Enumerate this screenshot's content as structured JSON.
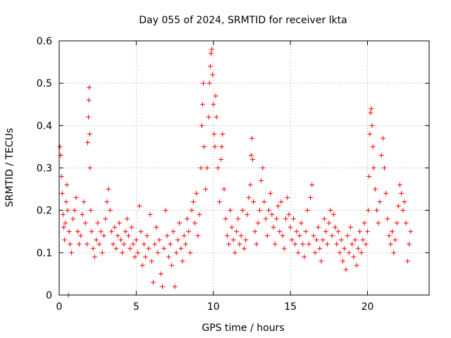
{
  "chart_data": {
    "type": "scatter",
    "title": "Day 055 of 2024, SRMTID for receiver lkta",
    "xlabel": "GPS time / hours",
    "ylabel": "SRMTID / TECUs",
    "xlim": [
      0,
      24
    ],
    "ylim": [
      0,
      0.6
    ],
    "xticks": [
      0,
      5,
      10,
      15,
      20
    ],
    "xtick_labels": [
      "0",
      "5",
      "10",
      "15",
      "20"
    ],
    "yticks": [
      0,
      0.1,
      0.2,
      0.3,
      0.4,
      0.5,
      0.6
    ],
    "ytick_labels": [
      "0",
      "0.1",
      "0.2",
      "0.3",
      "0.4",
      "0.5",
      "0.6"
    ],
    "grid": true,
    "marker": "plus",
    "color": "#ff0000",
    "series": [
      {
        "name": "SRMTID",
        "points": [
          [
            0.05,
            0.35
          ],
          [
            0.1,
            0.33
          ],
          [
            0.15,
            0.28
          ],
          [
            0.2,
            0.24
          ],
          [
            0.25,
            0.19
          ],
          [
            0.3,
            0.16
          ],
          [
            0.35,
            0.13
          ],
          [
            0.4,
            0.17
          ],
          [
            0.45,
            0.22
          ],
          [
            0.5,
            0.26
          ],
          [
            0.55,
            0.2
          ],
          [
            0.6,
            0.0
          ],
          [
            0.65,
            0.15
          ],
          [
            0.7,
            0.12
          ],
          [
            0.8,
            0.1
          ],
          [
            0.9,
            0.18
          ],
          [
            1.0,
            0.2
          ],
          [
            1.1,
            0.23
          ],
          [
            1.2,
            0.15
          ],
          [
            1.3,
            0.12
          ],
          [
            1.4,
            0.14
          ],
          [
            1.5,
            0.19
          ],
          [
            1.6,
            0.22
          ],
          [
            1.7,
            0.17
          ],
          [
            1.8,
            0.12
          ],
          [
            1.85,
            0.36
          ],
          [
            1.9,
            0.42
          ],
          [
            1.92,
            0.46
          ],
          [
            1.95,
            0.49
          ],
          [
            1.98,
            0.38
          ],
          [
            2.0,
            0.3
          ],
          [
            2.05,
            0.2
          ],
          [
            2.1,
            0.15
          ],
          [
            2.2,
            0.11
          ],
          [
            2.3,
            0.09
          ],
          [
            2.4,
            0.13
          ],
          [
            2.5,
            0.17
          ],
          [
            2.6,
            0.12
          ],
          [
            2.7,
            0.15
          ],
          [
            2.8,
            0.1
          ],
          [
            2.9,
            0.14
          ],
          [
            3.0,
            0.18
          ],
          [
            3.1,
            0.22
          ],
          [
            3.2,
            0.25
          ],
          [
            3.3,
            0.2
          ],
          [
            3.4,
            0.15
          ],
          [
            3.5,
            0.12
          ],
          [
            3.6,
            0.16
          ],
          [
            3.7,
            0.11
          ],
          [
            3.8,
            0.14
          ],
          [
            3.9,
            0.17
          ],
          [
            4.0,
            0.13
          ],
          [
            4.1,
            0.1
          ],
          [
            4.2,
            0.12
          ],
          [
            4.3,
            0.15
          ],
          [
            4.4,
            0.18
          ],
          [
            4.5,
            0.14
          ],
          [
            4.6,
            0.11
          ],
          [
            4.7,
            0.16
          ],
          [
            4.8,
            0.12
          ],
          [
            4.9,
            0.09
          ],
          [
            5.0,
            0.13
          ],
          [
            5.1,
            0.1
          ],
          [
            5.2,
            0.21
          ],
          [
            5.3,
            0.15
          ],
          [
            5.4,
            0.07
          ],
          [
            5.5,
            0.12
          ],
          [
            5.6,
            0.09
          ],
          [
            5.7,
            0.14
          ],
          [
            5.8,
            0.11
          ],
          [
            5.9,
            0.19
          ],
          [
            6.0,
            0.08
          ],
          [
            6.1,
            0.03
          ],
          [
            6.2,
            0.12
          ],
          [
            6.3,
            0.16
          ],
          [
            6.4,
            0.1
          ],
          [
            6.5,
            0.13
          ],
          [
            6.6,
            0.05
          ],
          [
            6.7,
            0.02
          ],
          [
            6.8,
            0.11
          ],
          [
            6.9,
            0.2
          ],
          [
            7.0,
            0.14
          ],
          [
            7.1,
            0.09
          ],
          [
            7.2,
            0.12
          ],
          [
            7.3,
            0.07
          ],
          [
            7.4,
            0.15
          ],
          [
            7.5,
            0.02
          ],
          [
            7.6,
            0.1
          ],
          [
            7.7,
            0.13
          ],
          [
            7.8,
            0.17
          ],
          [
            7.9,
            0.11
          ],
          [
            8.0,
            0.08
          ],
          [
            8.1,
            0.14
          ],
          [
            8.2,
            0.12
          ],
          [
            8.3,
            0.18
          ],
          [
            8.4,
            0.15
          ],
          [
            8.5,
            0.1
          ],
          [
            8.6,
            0.2
          ],
          [
            8.7,
            0.22
          ],
          [
            8.8,
            0.17
          ],
          [
            8.9,
            0.24
          ],
          [
            9.0,
            0.14
          ],
          [
            9.1,
            0.19
          ],
          [
            9.2,
            0.3
          ],
          [
            9.25,
            0.4
          ],
          [
            9.3,
            0.45
          ],
          [
            9.35,
            0.5
          ],
          [
            9.4,
            0.35
          ],
          [
            9.5,
            0.25
          ],
          [
            9.6,
            0.3
          ],
          [
            9.7,
            0.42
          ],
          [
            9.75,
            0.5
          ],
          [
            9.8,
            0.54
          ],
          [
            9.85,
            0.57
          ],
          [
            9.9,
            0.58
          ],
          [
            9.95,
            0.52
          ],
          [
            10.0,
            0.45
          ],
          [
            10.05,
            0.38
          ],
          [
            10.1,
            0.35
          ],
          [
            10.15,
            0.47
          ],
          [
            10.2,
            0.42
          ],
          [
            10.3,
            0.3
          ],
          [
            10.4,
            0.22
          ],
          [
            10.5,
            0.32
          ],
          [
            10.55,
            0.35
          ],
          [
            10.6,
            0.38
          ],
          [
            10.7,
            0.25
          ],
          [
            10.8,
            0.18
          ],
          [
            10.9,
            0.14
          ],
          [
            11.0,
            0.12
          ],
          [
            11.1,
            0.2
          ],
          [
            11.2,
            0.16
          ],
          [
            11.3,
            0.13
          ],
          [
            11.4,
            0.1
          ],
          [
            11.5,
            0.15
          ],
          [
            11.6,
            0.18
          ],
          [
            11.7,
            0.12
          ],
          [
            11.8,
            0.14
          ],
          [
            11.9,
            0.2
          ],
          [
            12.0,
            0.11
          ],
          [
            12.1,
            0.13
          ],
          [
            12.2,
            0.19
          ],
          [
            12.3,
            0.23
          ],
          [
            12.4,
            0.26
          ],
          [
            12.45,
            0.33
          ],
          [
            12.5,
            0.37
          ],
          [
            12.55,
            0.32
          ],
          [
            12.6,
            0.22
          ],
          [
            12.7,
            0.15
          ],
          [
            12.8,
            0.12
          ],
          [
            12.9,
            0.17
          ],
          [
            13.0,
            0.2
          ],
          [
            13.1,
            0.27
          ],
          [
            13.2,
            0.3
          ],
          [
            13.3,
            0.22
          ],
          [
            13.4,
            0.18
          ],
          [
            13.5,
            0.14
          ],
          [
            13.6,
            0.2
          ],
          [
            13.7,
            0.24
          ],
          [
            13.8,
            0.19
          ],
          [
            13.9,
            0.16
          ],
          [
            14.0,
            0.12
          ],
          [
            14.1,
            0.18
          ],
          [
            14.2,
            0.21
          ],
          [
            14.3,
            0.15
          ],
          [
            14.4,
            0.22
          ],
          [
            14.5,
            0.14
          ],
          [
            14.6,
            0.11
          ],
          [
            14.7,
            0.18
          ],
          [
            14.8,
            0.23
          ],
          [
            14.9,
            0.19
          ],
          [
            15.0,
            0.16
          ],
          [
            15.1,
            0.13
          ],
          [
            15.2,
            0.18
          ],
          [
            15.3,
            0.12
          ],
          [
            15.4,
            0.15
          ],
          [
            15.5,
            0.1
          ],
          [
            15.6,
            0.14
          ],
          [
            15.7,
            0.17
          ],
          [
            15.8,
            0.12
          ],
          [
            15.9,
            0.09
          ],
          [
            16.0,
            0.15
          ],
          [
            16.1,
            0.2
          ],
          [
            16.2,
            0.12
          ],
          [
            16.3,
            0.23
          ],
          [
            16.4,
            0.26
          ],
          [
            16.5,
            0.14
          ],
          [
            16.6,
            0.1
          ],
          [
            16.7,
            0.13
          ],
          [
            16.8,
            0.16
          ],
          [
            16.9,
            0.11
          ],
          [
            17.0,
            0.08
          ],
          [
            17.1,
            0.13
          ],
          [
            17.2,
            0.18
          ],
          [
            17.3,
            0.15
          ],
          [
            17.4,
            0.12
          ],
          [
            17.5,
            0.17
          ],
          [
            17.6,
            0.2
          ],
          [
            17.7,
            0.14
          ],
          [
            17.8,
            0.19
          ],
          [
            17.9,
            0.16
          ],
          [
            18.0,
            0.12
          ],
          [
            18.1,
            0.15
          ],
          [
            18.2,
            0.1
          ],
          [
            18.3,
            0.13
          ],
          [
            18.4,
            0.08
          ],
          [
            18.5,
            0.11
          ],
          [
            18.6,
            0.06
          ],
          [
            18.7,
            0.14
          ],
          [
            18.8,
            0.1
          ],
          [
            18.9,
            0.16
          ],
          [
            19.0,
            0.12
          ],
          [
            19.1,
            0.09
          ],
          [
            19.2,
            0.13
          ],
          [
            19.3,
            0.07
          ],
          [
            19.4,
            0.11
          ],
          [
            19.5,
            0.15
          ],
          [
            19.6,
            0.1
          ],
          [
            19.7,
            0.13
          ],
          [
            19.8,
            0.17
          ],
          [
            19.9,
            0.12
          ],
          [
            20.0,
            0.15
          ],
          [
            20.05,
            0.2
          ],
          [
            20.1,
            0.28
          ],
          [
            20.15,
            0.38
          ],
          [
            20.2,
            0.43
          ],
          [
            20.25,
            0.44
          ],
          [
            20.3,
            0.4
          ],
          [
            20.35,
            0.35
          ],
          [
            20.4,
            0.3
          ],
          [
            20.5,
            0.25
          ],
          [
            20.6,
            0.2
          ],
          [
            20.7,
            0.17
          ],
          [
            20.8,
            0.22
          ],
          [
            20.9,
            0.33
          ],
          [
            21.0,
            0.37
          ],
          [
            21.1,
            0.3
          ],
          [
            21.2,
            0.24
          ],
          [
            21.3,
            0.18
          ],
          [
            21.4,
            0.14
          ],
          [
            21.5,
            0.12
          ],
          [
            21.6,
            0.15
          ],
          [
            21.7,
            0.1
          ],
          [
            21.8,
            0.13
          ],
          [
            21.9,
            0.17
          ],
          [
            22.0,
            0.21
          ],
          [
            22.1,
            0.26
          ],
          [
            22.2,
            0.24
          ],
          [
            22.3,
            0.2
          ],
          [
            22.4,
            0.22
          ],
          [
            22.5,
            0.17
          ],
          [
            22.6,
            0.08
          ],
          [
            22.7,
            0.12
          ],
          [
            22.8,
            0.15
          ]
        ]
      }
    ]
  }
}
